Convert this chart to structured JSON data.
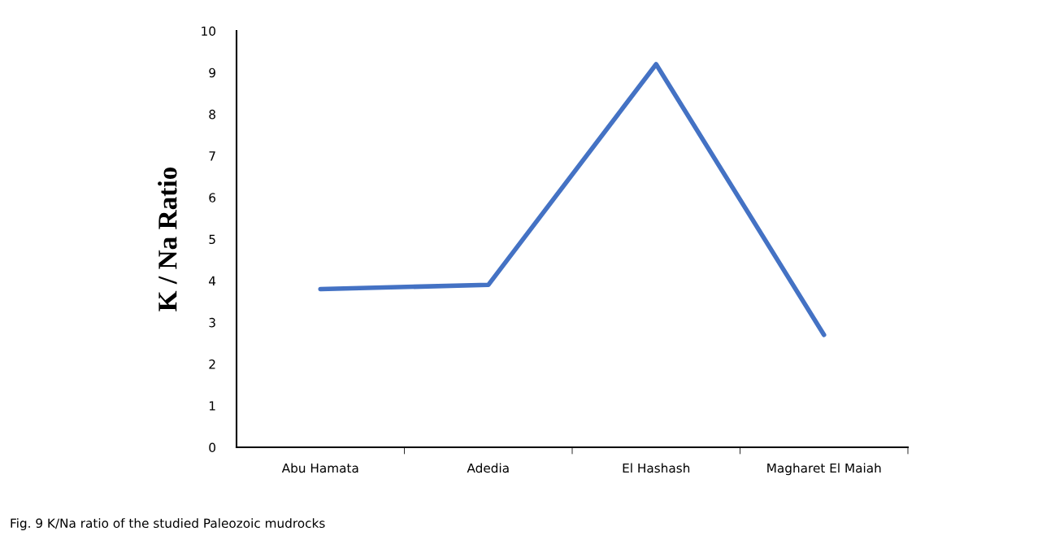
{
  "chart_data": {
    "type": "line",
    "ylabel": "K / Na Ratio",
    "categories": [
      "Abu Hamata",
      "Adedia",
      "El Hashash",
      "Magharet El Maiah"
    ],
    "series": [
      {
        "color": "#4472c4",
        "values": [
          3.8,
          3.9,
          9.2,
          2.7
        ]
      }
    ],
    "ylim": [
      0,
      10
    ],
    "yticks": [
      0,
      1,
      2,
      3,
      4,
      5,
      6,
      7,
      8,
      9,
      10
    ],
    "grid": false,
    "legend": false,
    "marker": "none",
    "line_style": "solid",
    "annotations": [
      "Fig. 9 K/Na ratio of the studied Paleozoic mudrocks"
    ]
  }
}
